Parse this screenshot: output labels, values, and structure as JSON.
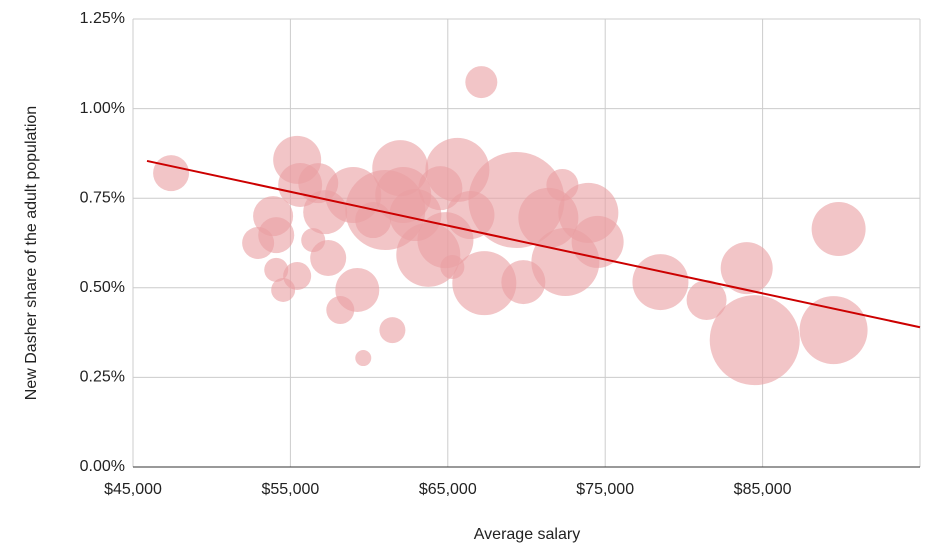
{
  "chart_data": {
    "type": "bubble",
    "x_label": "Average salary",
    "y_label": "New Dasher share of the adult population",
    "xlim": [
      45000,
      95000
    ],
    "xticks": [
      {
        "value": 45000,
        "label": "$45,000"
      },
      {
        "value": 55000,
        "label": "$55,000"
      },
      {
        "value": 65000,
        "label": "$65,000"
      },
      {
        "value": 75000,
        "label": "$75,000"
      },
      {
        "value": 85000,
        "label": "$85,000"
      }
    ],
    "ylim": [
      0,
      1.25
    ],
    "yticks": [
      {
        "value": 0,
        "label": "0.00%"
      },
      {
        "value": 0.25,
        "label": "0.25%"
      },
      {
        "value": 0.5,
        "label": "0.50%"
      },
      {
        "value": 0.75,
        "label": "0.75%"
      },
      {
        "value": 1.0,
        "label": "1.00%"
      },
      {
        "value": 1.25,
        "label": "1.25%"
      }
    ],
    "grid": true,
    "color": "#e99ea2",
    "x": [
      47420,
      55430,
      67130,
      53900,
      52950,
      54100,
      54100,
      54540,
      55430,
      55620,
      56770,
      56450,
      57400,
      57210,
      58170,
      59250,
      59630,
      61480,
      58990,
      60260,
      61030,
      61980,
      62170,
      62940,
      63760,
      64530,
      64850,
      65610,
      66440,
      65290,
      67320,
      69360,
      69800,
      71390,
      72280,
      72470,
      73930,
      74520,
      78510,
      81440,
      83990,
      84500,
      89830,
      89510
    ],
    "y": [
      0.82,
      0.857,
      1.074,
      0.7,
      0.625,
      0.647,
      0.55,
      0.494,
      0.533,
      0.787,
      0.792,
      0.633,
      0.583,
      0.711,
      0.438,
      0.494,
      0.304,
      0.382,
      0.759,
      0.689,
      0.717,
      0.834,
      0.759,
      0.703,
      0.592,
      0.778,
      0.633,
      0.829,
      0.703,
      0.558,
      0.513,
      0.745,
      0.516,
      0.695,
      0.787,
      0.572,
      0.709,
      0.628,
      0.516,
      0.466,
      0.555,
      0.354,
      0.664,
      0.382
    ],
    "size": [
      324,
      576,
      256,
      400,
      256,
      324,
      144,
      144,
      196,
      484,
      400,
      144,
      324,
      484,
      196,
      484,
      64,
      169,
      784,
      324,
      1600,
      784,
      784,
      676,
      1024,
      484,
      784,
      1024,
      576,
      144,
      1024,
      2304,
      484,
      900,
      256,
      1156,
      900,
      676,
      784,
      400,
      676,
      2025,
      729,
      1156
    ],
    "trendline": {
      "color": "#cc0000",
      "x": [
        45890,
        95000
      ],
      "y": [
        0.854,
        0.39
      ]
    }
  }
}
